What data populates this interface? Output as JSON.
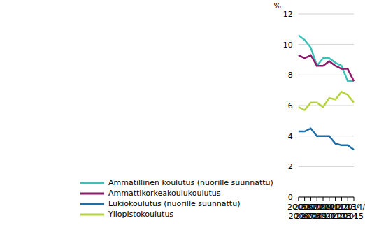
{
  "chart_data": {
    "type": "line",
    "y_label": "%",
    "categories": [
      "2005/\n2006",
      "2006/\n2007",
      "2007/\n2008",
      "2008/\n2009",
      "2009/\n2010",
      "2010\n/2011",
      "2011/\n2012",
      "2012/\n2013",
      "2013/\n2014",
      "2014/\n2015"
    ],
    "series": [
      {
        "name": "Lukiokoulutus (nuorille suunnattu)",
        "color": "#1f6fa8",
        "values": [
          4.3,
          4.3,
          4.5,
          4.0,
          4.0,
          4.0,
          3.5,
          3.4,
          3.4,
          3.1
        ]
      },
      {
        "name": "Ammatillinen koulutus (nuorille suunnattu)",
        "color": "#3cc1b9",
        "values": [
          10.6,
          10.3,
          9.8,
          8.6,
          9.1,
          9.1,
          8.8,
          8.6,
          7.6,
          7.6
        ]
      },
      {
        "name": "Ammattikorkeakoulukoulutus",
        "color": "#8b1c6b",
        "values": [
          9.3,
          9.1,
          9.3,
          8.6,
          8.6,
          8.9,
          8.6,
          8.4,
          8.4,
          7.6
        ]
      },
      {
        "name": "Yliopistokoulutus",
        "color": "#b5d33d",
        "values": [
          5.9,
          5.7,
          6.2,
          6.2,
          5.9,
          6.5,
          6.4,
          6.9,
          6.7,
          6.2
        ]
      }
    ],
    "ylim": [
      0,
      12
    ],
    "yticks": [
      0,
      2,
      4,
      6,
      8,
      10,
      12
    ],
    "grid": true,
    "legend": "bottom-left"
  }
}
